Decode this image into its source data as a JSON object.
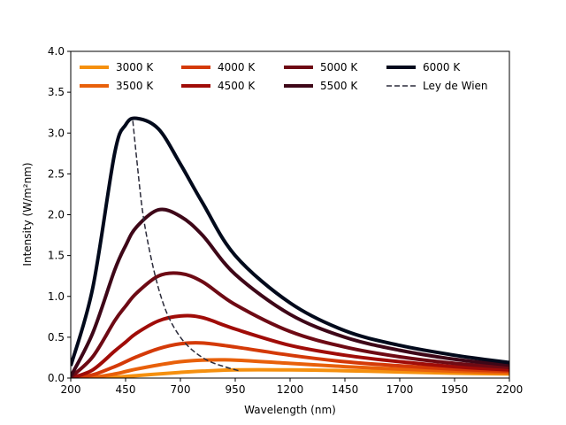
{
  "chart_data": {
    "type": "line",
    "xlabel": "Wavelength (nm)",
    "ylabel": "Intensity (W/m²nm)",
    "xlim": [
      200,
      2200
    ],
    "ylim": [
      0,
      4.0
    ],
    "x_ticks": [
      "200",
      "450",
      "700",
      "950",
      "1200",
      "1450",
      "1700",
      "1950",
      "2200"
    ],
    "y_ticks": [
      "0.0",
      "0.5",
      "1.0",
      "1.5",
      "2.0",
      "2.5",
      "3.0",
      "3.5",
      "4.0"
    ],
    "x": [
      200,
      300,
      400,
      450,
      500,
      600,
      700,
      800,
      950,
      1200,
      1450,
      1700,
      1950,
      2200
    ],
    "series": [
      {
        "name": "3000 K",
        "color": "#f5900f",
        "values": [
          0.0,
          0.0,
          0.01,
          0.02,
          0.03,
          0.05,
          0.07,
          0.085,
          0.1,
          0.1,
          0.09,
          0.075,
          0.06,
          0.05
        ]
      },
      {
        "name": "3500 K",
        "color": "#e8600a",
        "values": [
          0.0,
          0.01,
          0.05,
          0.08,
          0.11,
          0.16,
          0.2,
          0.22,
          0.22,
          0.18,
          0.14,
          0.11,
          0.085,
          0.065
        ]
      },
      {
        "name": "4000 K",
        "color": "#d43a08",
        "values": [
          0.0,
          0.04,
          0.14,
          0.2,
          0.26,
          0.36,
          0.42,
          0.43,
          0.38,
          0.28,
          0.2,
          0.15,
          0.11,
          0.085
        ]
      },
      {
        "name": "4500 K",
        "color": "#a00c08",
        "values": [
          0.0,
          0.1,
          0.33,
          0.44,
          0.55,
          0.7,
          0.76,
          0.74,
          0.6,
          0.4,
          0.28,
          0.2,
          0.14,
          0.1
        ]
      },
      {
        "name": "5000 K",
        "color": "#6e0a14",
        "values": [
          0.01,
          0.26,
          0.7,
          0.88,
          1.04,
          1.25,
          1.28,
          1.18,
          0.9,
          0.57,
          0.38,
          0.26,
          0.18,
          0.13
        ]
      },
      {
        "name": "5500 K",
        "color": "#3e0718",
        "values": [
          0.02,
          0.55,
          1.32,
          1.62,
          1.85,
          2.06,
          1.98,
          1.75,
          1.27,
          0.78,
          0.5,
          0.34,
          0.23,
          0.16
        ]
      },
      {
        "name": "6000 K",
        "color": "#020a1c",
        "values": [
          0.15,
          1.1,
          2.75,
          3.1,
          3.18,
          3.05,
          2.62,
          2.15,
          1.5,
          0.92,
          0.58,
          0.4,
          0.28,
          0.19
        ]
      }
    ],
    "wien_series": {
      "name": "Ley de Wien",
      "color": "#2b2b3a",
      "x": [
        483,
        500,
        527,
        560,
        600,
        644,
        700,
        760,
        828,
        900,
        966
      ],
      "values": [
        3.15,
        2.7,
        2.05,
        1.55,
        1.1,
        0.76,
        0.5,
        0.33,
        0.21,
        0.14,
        0.09
      ]
    },
    "legend_position": "upper-left",
    "grid": false
  }
}
